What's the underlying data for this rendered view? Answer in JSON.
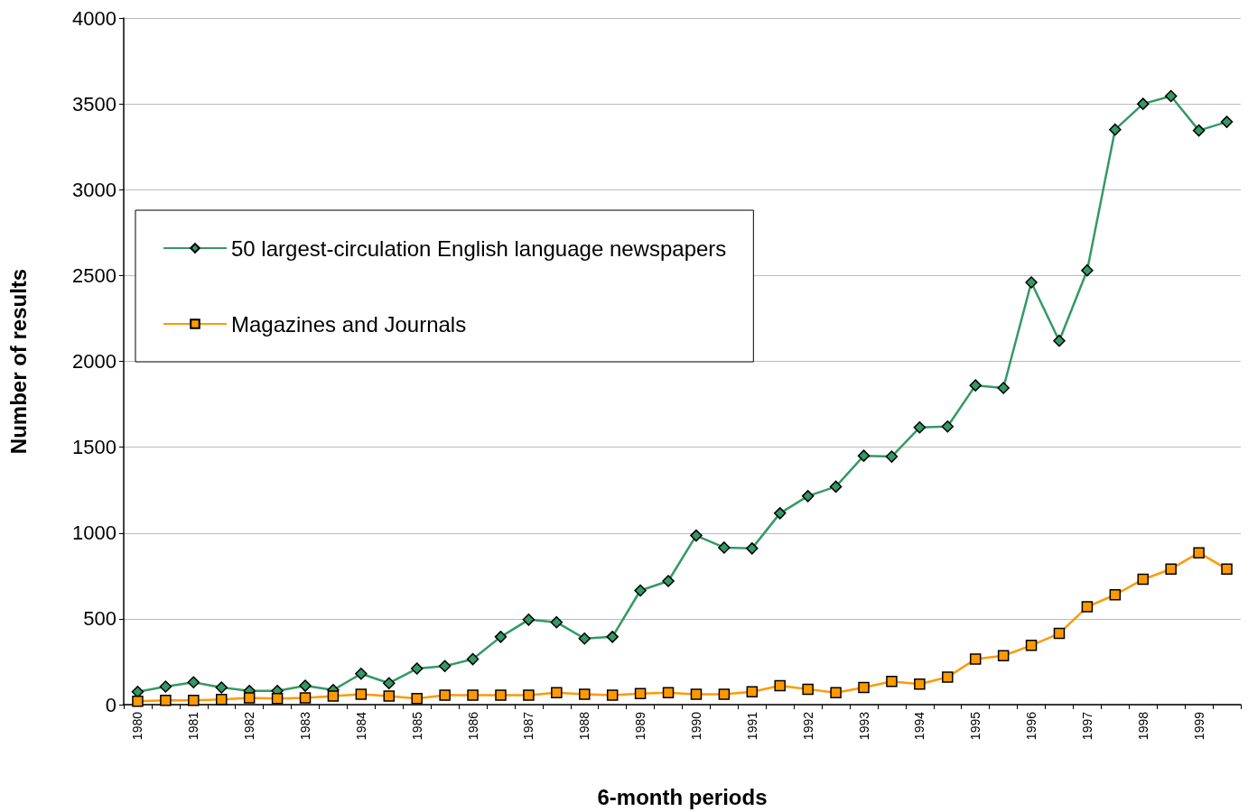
{
  "chart_data": {
    "type": "line",
    "xlabel": "6-month periods",
    "ylabel": "Number of results",
    "categories": [
      "1980",
      null,
      "1981",
      null,
      "1982",
      null,
      "1983",
      null,
      "1984",
      null,
      "1985",
      null,
      "1986",
      null,
      "1987",
      null,
      "1988",
      null,
      "1989",
      null,
      "1990",
      null,
      "1991",
      null,
      "1992",
      null,
      "1993",
      null,
      "1994",
      null,
      "1995",
      null,
      "1996",
      null,
      "1997",
      null,
      "1998",
      null,
      "1999",
      null
    ],
    "series": [
      {
        "name": "50 largest-circulation English language newspapers",
        "color": "#339966",
        "marker": "diamond",
        "values": [
          75,
          105,
          130,
          100,
          80,
          80,
          110,
          85,
          180,
          125,
          210,
          225,
          265,
          395,
          495,
          480,
          385,
          395,
          665,
          720,
          985,
          915,
          910,
          1115,
          1215,
          1270,
          1450,
          1445,
          1615,
          1620,
          1860,
          1845,
          2460,
          2120,
          2530,
          3350,
          3500,
          3545,
          3345,
          3395
        ]
      },
      {
        "name": "Magazines and Journals",
        "color": "#ff9900",
        "marker": "square",
        "values": [
          20,
          25,
          25,
          30,
          40,
          35,
          40,
          50,
          60,
          50,
          35,
          55,
          55,
          55,
          55,
          70,
          60,
          55,
          65,
          70,
          60,
          60,
          75,
          110,
          90,
          70,
          100,
          135,
          120,
          160,
          265,
          285,
          345,
          415,
          570,
          640,
          730,
          790,
          885,
          790
        ]
      }
    ],
    "ylim": [
      0,
      4000
    ],
    "yticks": [
      0,
      500,
      1000,
      1500,
      2000,
      2500,
      3000,
      3500,
      4000
    ],
    "grid": "y",
    "legend": "top left",
    "line_style": "solid"
  }
}
